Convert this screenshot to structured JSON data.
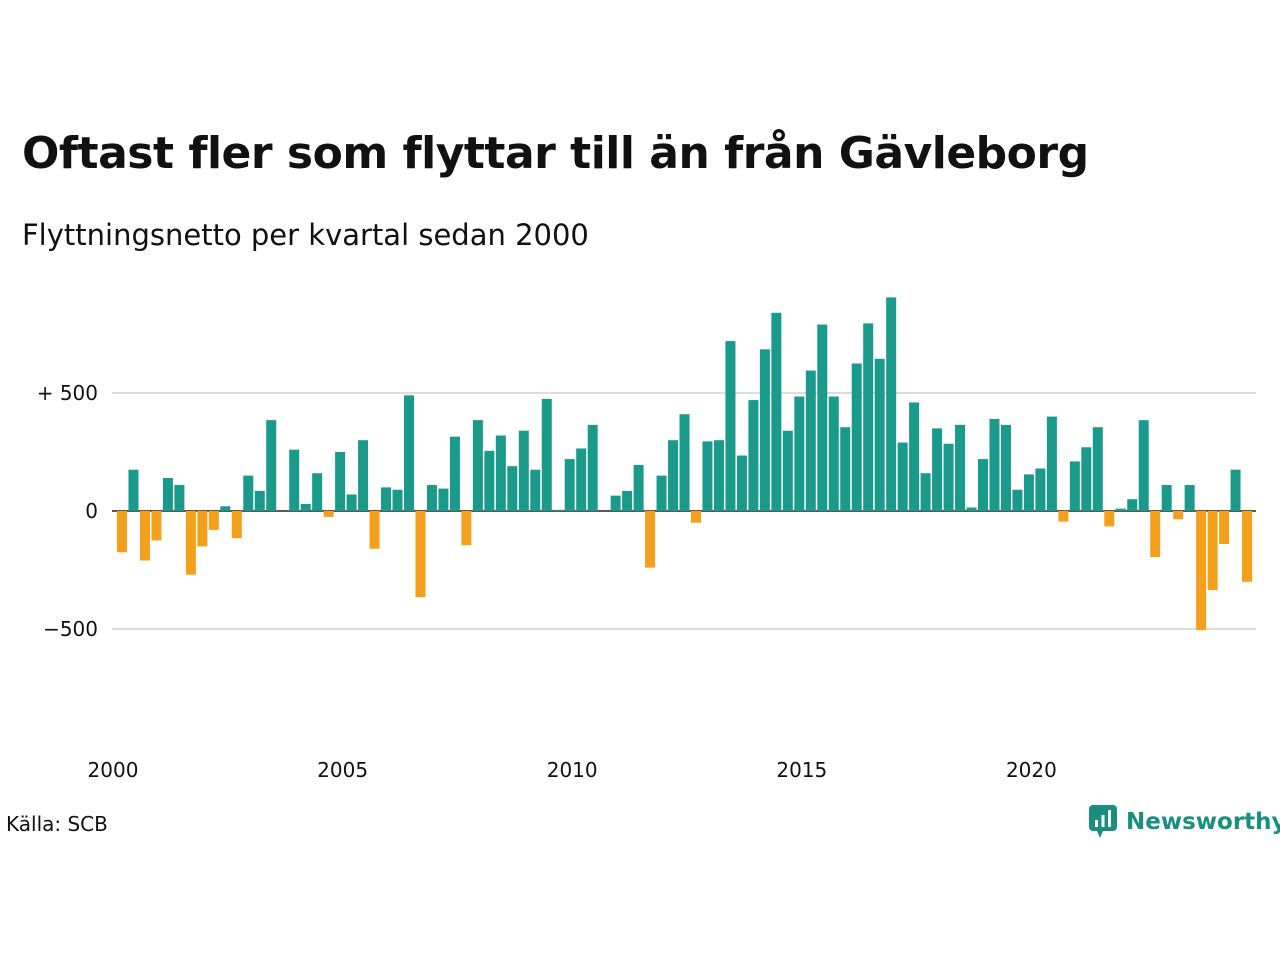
{
  "title": "Oftast fler som flyttar till än från Gävleborg",
  "subtitle": "Flyttningsnetto per kvartal sedan 2000",
  "source": "Källa: SCB",
  "brand": {
    "name": "Newsworthy",
    "icon": "newsworthy-logo-icon"
  },
  "colors": {
    "positive": "#1a9a8a",
    "negative": "#f5a01c",
    "grid": "#dddddd",
    "axis": "#222222"
  },
  "chart_data": {
    "type": "bar",
    "x_ticks": [
      2000,
      2005,
      2010,
      2015,
      2020
    ],
    "y_ticks": [
      {
        "value": 500,
        "label": "+ 500"
      },
      {
        "value": 0,
        "label": "0"
      },
      {
        "value": -500,
        "label": "−500"
      }
    ],
    "ylim": [
      -1000,
      900
    ],
    "grid": true,
    "start_year": 2000,
    "values": [
      -175,
      175,
      -210,
      -125,
      140,
      110,
      -270,
      -150,
      -80,
      20,
      -115,
      150,
      85,
      385,
      0,
      260,
      30,
      160,
      -25,
      250,
      70,
      300,
      -160,
      100,
      90,
      490,
      -365,
      110,
      95,
      315,
      -145,
      385,
      255,
      320,
      190,
      340,
      175,
      475,
      5,
      220,
      265,
      365,
      0,
      65,
      85,
      195,
      -240,
      150,
      300,
      410,
      -50,
      295,
      300,
      720,
      235,
      470,
      685,
      840,
      340,
      485,
      595,
      790,
      485,
      355,
      625,
      795,
      645,
      905,
      290,
      460,
      160,
      350,
      285,
      365,
      15,
      220,
      390,
      365,
      90,
      155,
      180,
      400,
      -45,
      210,
      270,
      355,
      -65,
      10,
      50,
      385,
      -195,
      110,
      -35,
      110,
      -505,
      -335,
      -140,
      175,
      -300
    ]
  }
}
